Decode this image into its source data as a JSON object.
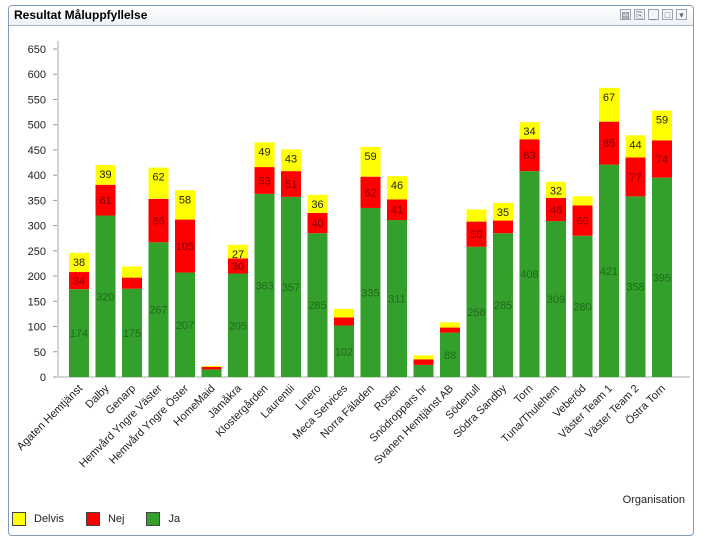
{
  "window": {
    "title": "Resultat Måluppfyllelse",
    "controls": [
      "print-icon",
      "export-icon",
      "minimize-icon",
      "maximize-icon",
      "menu-icon"
    ]
  },
  "chart_data": {
    "type": "bar",
    "stacked": true,
    "title": "",
    "xlabel": "Organisation",
    "ylabel": "",
    "ylim": [
      0,
      650
    ],
    "yticks": [
      0,
      50,
      100,
      150,
      200,
      250,
      300,
      350,
      400,
      450,
      500,
      550,
      600,
      650
    ],
    "grid": false,
    "legend_position": "bottom-left",
    "categories": [
      "Agaten Hemtjänst",
      "Dalby",
      "Genarp",
      "Hemvård Yngre Väster",
      "Hemvård Yngre Öster",
      "HomeMaid",
      "Jämåkra",
      "Klostergården",
      "Laurentii",
      "Linero",
      "Meca Services",
      "Norra Fäladen",
      "Rosen",
      "Snödroppars hr",
      "Svanen Hemtjänst AB",
      "Södertull",
      "Södra Sandby",
      "Torn",
      "Tuna/Thulehem",
      "Veberöd",
      "Väster Team 1",
      "Väster Team 2",
      "Östra Torn"
    ],
    "series": [
      {
        "name": "Ja",
        "color": "#33a02c",
        "values": [
          174,
          320,
          175,
          267,
          207,
          15,
          205,
          363,
          357,
          285,
          102,
          335,
          311,
          24,
          88,
          258,
          285,
          408,
          309,
          280,
          421,
          358,
          395
        ],
        "labels": [
          "174",
          "320",
          "175",
          "267",
          "207",
          "",
          "205",
          "363",
          "357",
          "285",
          "102",
          "335",
          "311",
          "",
          "88",
          "258",
          "285",
          "408",
          "309",
          "280",
          "421",
          "358",
          "395"
        ]
      },
      {
        "name": "Nej",
        "color": "#ff0000",
        "values": [
          34,
          61,
          22,
          86,
          105,
          5,
          30,
          53,
          51,
          40,
          16,
          62,
          41,
          11,
          10,
          50,
          25,
          63,
          46,
          60,
          85,
          77,
          74
        ],
        "labels": [
          "34",
          "61",
          "",
          "86",
          "105",
          "",
          "30",
          "53",
          "51",
          "40",
          "",
          "62",
          "41",
          "",
          "",
          "50",
          "",
          "63",
          "46",
          "60",
          "85",
          "77",
          "74"
        ]
      },
      {
        "name": "Delvis",
        "color": "#ffff00",
        "values": [
          38,
          39,
          22,
          62,
          58,
          2,
          27,
          49,
          43,
          36,
          17,
          59,
          46,
          8,
          10,
          24,
          35,
          34,
          32,
          18,
          67,
          44,
          59
        ],
        "labels": [
          "38",
          "39",
          "",
          "62",
          "58",
          "",
          "27",
          "49",
          "43",
          "36",
          "",
          "59",
          "46",
          "",
          "",
          "",
          "35",
          "34",
          "32",
          "",
          "67",
          "44",
          "59"
        ]
      }
    ]
  },
  "legend": [
    {
      "label": "Delvis",
      "color": "#ffff00"
    },
    {
      "label": "Nej",
      "color": "#ff0000"
    },
    {
      "label": "Ja",
      "color": "#33a02c"
    }
  ]
}
